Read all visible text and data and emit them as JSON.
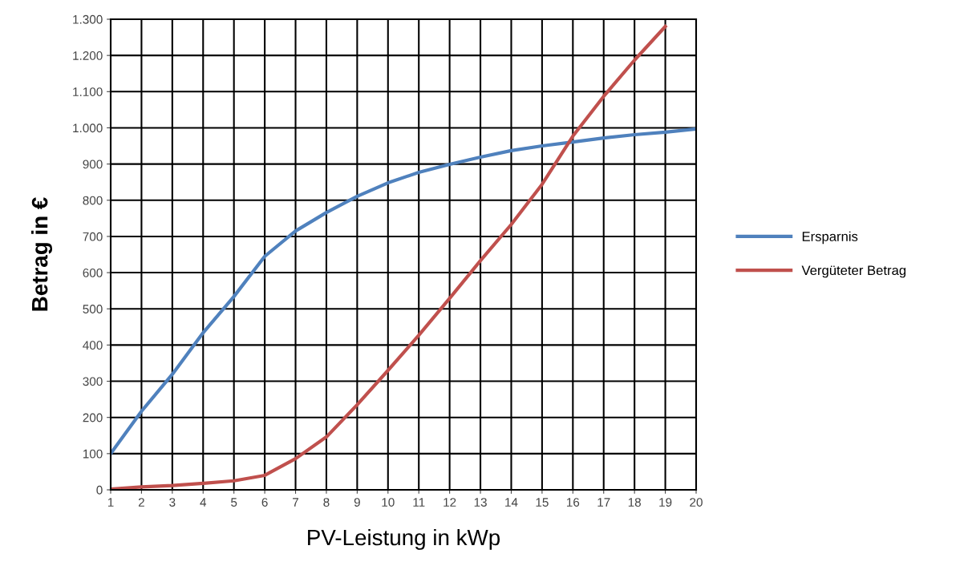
{
  "chart_data": {
    "type": "line",
    "xlabel": "PV-Leistung in kWp",
    "ylabel": "Betrag in €",
    "categories": [
      "1",
      "2",
      "3",
      "4",
      "5",
      "6",
      "7",
      "8",
      "9",
      "10",
      "11",
      "12",
      "13",
      "14",
      "15",
      "16",
      "17",
      "18",
      "19",
      "20"
    ],
    "series": [
      {
        "name": "Ersparnis",
        "color": "#4f81bd",
        "values": [
          100,
          217,
          319,
          434,
          534,
          645,
          715,
          766,
          811,
          848,
          877,
          899,
          919,
          937,
          950,
          961,
          972,
          981,
          988,
          997
        ]
      },
      {
        "name": "Vergüteter Betrag",
        "color": "#c0504d",
        "values": [
          2,
          8,
          12,
          18,
          25,
          40,
          86,
          146,
          235,
          330,
          427,
          529,
          633,
          733,
          844,
          977,
          1087,
          1187,
          1280,
          null
        ]
      }
    ],
    "ylim": [
      0,
      1300
    ],
    "yticks": [
      0,
      100,
      200,
      300,
      400,
      500,
      600,
      700,
      800,
      900,
      {
        "value": 1000,
        "label": "1.000"
      },
      {
        "value": 1100,
        "label": "1.100"
      },
      {
        "value": 1200,
        "label": "1.200"
      },
      {
        "value": 1300,
        "label": "1.300"
      }
    ],
    "grid": true,
    "legend": "right",
    "marker": "none",
    "line_style": "solid"
  }
}
